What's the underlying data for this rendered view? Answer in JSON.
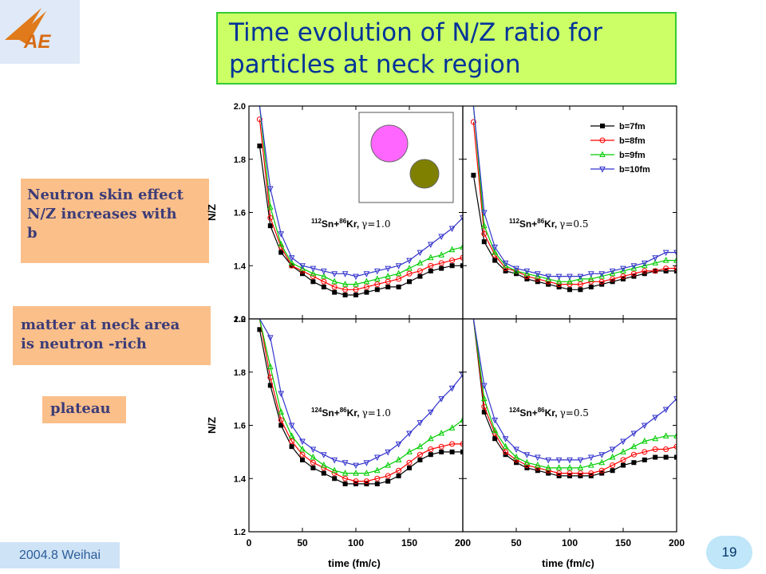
{
  "slide": {
    "title": "Time evolution of N/Z ratio for\n   particles at  neck region",
    "notes": [
      "Neutron skin effect\nN/Z increases with\nb",
      "matter at neck area\nis  neutron -rich",
      "plateau"
    ],
    "footer": "2004.8 Weihai",
    "page_number": "19"
  },
  "colors": {
    "title_bg": "#ccff66",
    "title_border": "#33cc33",
    "title_text": "#003399",
    "note_bg": "#fbbf8a",
    "series": [
      "#000000",
      "#ff0000",
      "#00cc00",
      "#3333cc"
    ]
  },
  "chart_data": {
    "type": "line",
    "layout": "2x2 panels",
    "xlabel": "time (fm/c)",
    "ylabel": "N/Z",
    "xlim": [
      0,
      200
    ],
    "ylim": [
      1.2,
      2.0
    ],
    "x_ticks": [
      "0",
      "50",
      "100",
      "150",
      "200"
    ],
    "y_ticks": [
      "1.2",
      "1.4",
      "1.6",
      "1.8",
      "2.0"
    ],
    "legend": [
      "b=7fm",
      "b=8fm",
      "b=9fm",
      "b=10fm"
    ],
    "legend_position": "top-right",
    "markers": [
      "filled-square",
      "open-circle",
      "open-triangle-up",
      "open-triangle-down"
    ],
    "x": [
      10,
      20,
      30,
      40,
      50,
      60,
      70,
      80,
      90,
      100,
      110,
      120,
      130,
      140,
      150,
      160,
      170,
      180,
      190,
      200
    ],
    "panels": [
      {
        "label_main": "Sn+",
        "label_main2": "Kr,",
        "label_sup1": "112",
        "label_sup2": "86",
        "label_gamma": "γ=1.0",
        "series": [
          {
            "name": "b=7fm",
            "values": [
              1.85,
              1.55,
              1.45,
              1.4,
              1.37,
              1.34,
              1.32,
              1.3,
              1.29,
              1.29,
              1.3,
              1.31,
              1.32,
              1.32,
              1.34,
              1.36,
              1.38,
              1.39,
              1.4,
              1.4
            ]
          },
          {
            "name": "b=8fm",
            "values": [
              1.95,
              1.58,
              1.47,
              1.4,
              1.38,
              1.36,
              1.34,
              1.32,
              1.31,
              1.31,
              1.32,
              1.33,
              1.34,
              1.35,
              1.37,
              1.38,
              1.4,
              1.41,
              1.42,
              1.43
            ]
          },
          {
            "name": "b=9fm",
            "values": [
              2.0,
              1.62,
              1.48,
              1.41,
              1.39,
              1.37,
              1.36,
              1.34,
              1.33,
              1.33,
              1.34,
              1.35,
              1.36,
              1.37,
              1.39,
              1.41,
              1.43,
              1.44,
              1.46,
              1.47
            ]
          },
          {
            "name": "b=10fm",
            "values": [
              2.0,
              1.69,
              1.52,
              1.43,
              1.4,
              1.39,
              1.38,
              1.37,
              1.37,
              1.36,
              1.37,
              1.38,
              1.39,
              1.4,
              1.42,
              1.45,
              1.48,
              1.51,
              1.54,
              1.58
            ]
          }
        ]
      },
      {
        "label_main": "Sn+",
        "label_main2": "Kr,",
        "label_sup1": "112",
        "label_sup2": "86",
        "label_gamma": "γ=0.5",
        "series": [
          {
            "name": "b=7fm",
            "values": [
              1.74,
              1.49,
              1.42,
              1.38,
              1.37,
              1.35,
              1.34,
              1.33,
              1.32,
              1.31,
              1.31,
              1.32,
              1.33,
              1.34,
              1.35,
              1.36,
              1.37,
              1.38,
              1.38,
              1.38
            ]
          },
          {
            "name": "b=8fm",
            "values": [
              1.94,
              1.52,
              1.44,
              1.39,
              1.38,
              1.36,
              1.35,
              1.34,
              1.33,
              1.33,
              1.33,
              1.34,
              1.34,
              1.35,
              1.36,
              1.37,
              1.38,
              1.38,
              1.39,
              1.39
            ]
          },
          {
            "name": "b=9fm",
            "values": [
              2.0,
              1.55,
              1.45,
              1.4,
              1.38,
              1.37,
              1.36,
              1.35,
              1.34,
              1.34,
              1.35,
              1.35,
              1.36,
              1.37,
              1.38,
              1.39,
              1.4,
              1.41,
              1.42,
              1.42
            ]
          },
          {
            "name": "b=10fm",
            "values": [
              2.0,
              1.6,
              1.47,
              1.41,
              1.39,
              1.38,
              1.37,
              1.36,
              1.36,
              1.36,
              1.36,
              1.37,
              1.37,
              1.38,
              1.39,
              1.4,
              1.41,
              1.43,
              1.45,
              1.45
            ]
          }
        ]
      },
      {
        "label_main": "Sn+",
        "label_main2": "Kr,",
        "label_sup1": "124",
        "label_sup2": "86",
        "label_gamma": "γ=1.0",
        "series": [
          {
            "name": "b=7fm",
            "values": [
              1.96,
              1.75,
              1.6,
              1.52,
              1.47,
              1.44,
              1.42,
              1.4,
              1.38,
              1.38,
              1.38,
              1.38,
              1.39,
              1.41,
              1.44,
              1.47,
              1.49,
              1.5,
              1.5,
              1.5
            ]
          },
          {
            "name": "b=8fm",
            "values": [
              2.0,
              1.78,
              1.62,
              1.54,
              1.49,
              1.46,
              1.44,
              1.42,
              1.4,
              1.39,
              1.39,
              1.4,
              1.41,
              1.43,
              1.46,
              1.49,
              1.51,
              1.52,
              1.53,
              1.53
            ]
          },
          {
            "name": "b=9fm",
            "values": [
              2.0,
              1.82,
              1.65,
              1.56,
              1.51,
              1.48,
              1.45,
              1.43,
              1.42,
              1.42,
              1.42,
              1.43,
              1.45,
              1.47,
              1.5,
              1.52,
              1.55,
              1.57,
              1.59,
              1.62
            ]
          },
          {
            "name": "b=10fm",
            "values": [
              2.0,
              1.93,
              1.72,
              1.6,
              1.54,
              1.51,
              1.49,
              1.47,
              1.46,
              1.45,
              1.46,
              1.48,
              1.5,
              1.53,
              1.57,
              1.61,
              1.65,
              1.7,
              1.74,
              1.79
            ]
          }
        ]
      },
      {
        "label_main": "Sn+",
        "label_main2": "Kr,",
        "label_sup1": "124",
        "label_sup2": "86",
        "label_gamma": "γ=0.5",
        "series": [
          {
            "name": "b=7fm",
            "values": [
              2.0,
              1.65,
              1.55,
              1.49,
              1.46,
              1.44,
              1.43,
              1.42,
              1.41,
              1.41,
              1.41,
              1.41,
              1.42,
              1.43,
              1.45,
              1.46,
              1.47,
              1.48,
              1.48,
              1.48
            ]
          },
          {
            "name": "b=8fm",
            "values": [
              2.0,
              1.67,
              1.57,
              1.5,
              1.47,
              1.45,
              1.44,
              1.43,
              1.42,
              1.42,
              1.42,
              1.42,
              1.43,
              1.45,
              1.47,
              1.49,
              1.5,
              1.51,
              1.51,
              1.52
            ]
          },
          {
            "name": "b=9fm",
            "values": [
              2.0,
              1.7,
              1.58,
              1.52,
              1.48,
              1.46,
              1.45,
              1.44,
              1.44,
              1.44,
              1.44,
              1.45,
              1.46,
              1.48,
              1.5,
              1.52,
              1.54,
              1.55,
              1.56,
              1.56
            ]
          },
          {
            "name": "b=10fm",
            "values": [
              2.0,
              1.75,
              1.62,
              1.55,
              1.51,
              1.49,
              1.48,
              1.47,
              1.47,
              1.47,
              1.47,
              1.48,
              1.49,
              1.51,
              1.54,
              1.57,
              1.6,
              1.63,
              1.66,
              1.7
            ]
          }
        ]
      }
    ]
  }
}
